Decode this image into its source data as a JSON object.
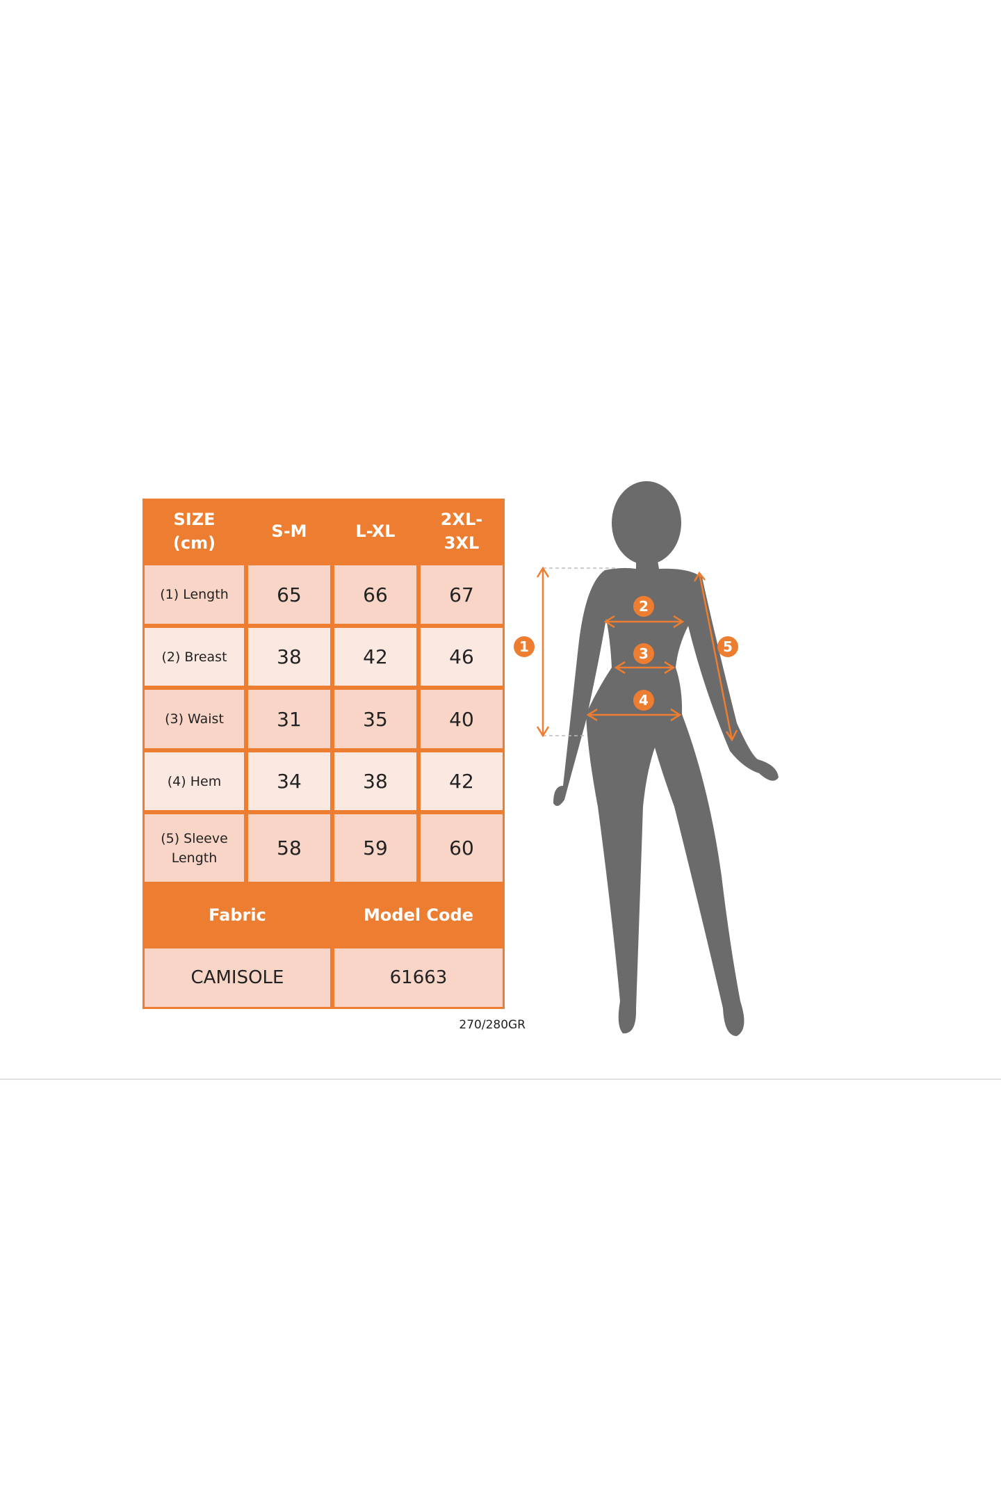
{
  "table": {
    "header": [
      "SIZE\n(cm)",
      "S-M",
      "L-XL",
      "2XL-\n3XL"
    ],
    "rows": [
      {
        "label": "(1) Length",
        "values": [
          "65",
          "66",
          "67"
        ]
      },
      {
        "label": "(2) Breast",
        "values": [
          "38",
          "42",
          "46"
        ]
      },
      {
        "label": "(3) Waist",
        "values": [
          "31",
          "35",
          "40"
        ]
      },
      {
        "label": "(4) Hem",
        "values": [
          "34",
          "38",
          "42"
        ]
      },
      {
        "label": "(5) Sleeve\nLength",
        "values": [
          "58",
          "59",
          "60"
        ]
      }
    ],
    "footer_header": [
      "Fabric",
      "Model Code"
    ],
    "footer_values": [
      "CAMISOLE",
      "61663"
    ]
  },
  "weight_note": "270/280GR",
  "diagram": {
    "markers": [
      "1",
      "2",
      "3",
      "4",
      "5"
    ],
    "accent_color": "#ED7D31",
    "silhouette_color": "#6B6B6B"
  }
}
